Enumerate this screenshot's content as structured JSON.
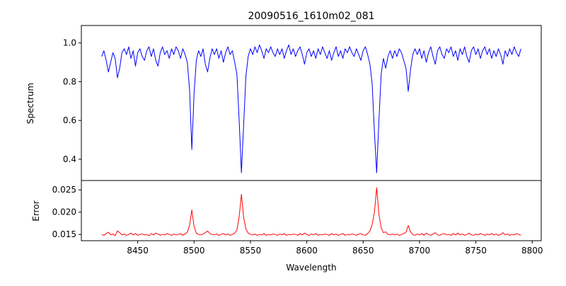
{
  "chart_data": {
    "type": "line",
    "title": "20090516_1610m02_081",
    "xlabel": "Wavelength",
    "xlim": [
      8400,
      8808
    ],
    "xticks": [
      8450,
      8500,
      8550,
      8600,
      8650,
      8700,
      8750,
      8800
    ],
    "grid": false,
    "legend": "none",
    "x": [
      8418,
      8420,
      8422,
      8424,
      8426,
      8428,
      8430,
      8432,
      8434,
      8436,
      8438,
      8440,
      8442,
      8444,
      8446,
      8448,
      8450,
      8452,
      8454,
      8456,
      8458,
      8460,
      8462,
      8464,
      8466,
      8468,
      8470,
      8472,
      8474,
      8476,
      8478,
      8480,
      8482,
      8484,
      8486,
      8488,
      8490,
      8492,
      8494,
      8496,
      8498,
      8500,
      8502,
      8504,
      8506,
      8508,
      8510,
      8512,
      8514,
      8516,
      8518,
      8520,
      8522,
      8524,
      8526,
      8528,
      8530,
      8532,
      8534,
      8536,
      8538,
      8540,
      8542,
      8544,
      8546,
      8548,
      8550,
      8552,
      8554,
      8556,
      8558,
      8560,
      8562,
      8564,
      8566,
      8568,
      8570,
      8572,
      8574,
      8576,
      8578,
      8580,
      8582,
      8584,
      8586,
      8588,
      8590,
      8592,
      8594,
      8596,
      8598,
      8600,
      8602,
      8604,
      8606,
      8608,
      8610,
      8612,
      8614,
      8616,
      8618,
      8620,
      8622,
      8624,
      8626,
      8628,
      8630,
      8632,
      8634,
      8636,
      8638,
      8640,
      8642,
      8644,
      8646,
      8648,
      8650,
      8652,
      8654,
      8656,
      8658,
      8660,
      8662,
      8664,
      8666,
      8668,
      8670,
      8672,
      8674,
      8676,
      8678,
      8680,
      8682,
      8684,
      8686,
      8688,
      8690,
      8692,
      8694,
      8696,
      8698,
      8700,
      8702,
      8704,
      8706,
      8708,
      8710,
      8712,
      8714,
      8716,
      8718,
      8720,
      8722,
      8724,
      8726,
      8728,
      8730,
      8732,
      8734,
      8736,
      8738,
      8740,
      8742,
      8744,
      8746,
      8748,
      8750,
      8752,
      8754,
      8756,
      8758,
      8760,
      8762,
      8764,
      8766,
      8768,
      8770,
      8772,
      8774,
      8776,
      8778,
      8780,
      8782,
      8784,
      8786,
      8788,
      8790
    ],
    "panels": [
      {
        "ylabel": "Spectrum",
        "color": "#0000ff",
        "ylim": [
          0.29,
          1.09
        ],
        "yticks": [
          0.4,
          0.6,
          0.8,
          1.0
        ],
        "tick_decimals": 1,
        "values": [
          0.93,
          0.96,
          0.91,
          0.85,
          0.9,
          0.95,
          0.92,
          0.82,
          0.87,
          0.95,
          0.97,
          0.94,
          0.98,
          0.92,
          0.96,
          0.88,
          0.95,
          0.97,
          0.93,
          0.91,
          0.96,
          0.98,
          0.93,
          0.97,
          0.91,
          0.88,
          0.95,
          0.98,
          0.94,
          0.96,
          0.92,
          0.97,
          0.94,
          0.98,
          0.96,
          0.92,
          0.97,
          0.94,
          0.9,
          0.76,
          0.45,
          0.74,
          0.91,
          0.96,
          0.93,
          0.97,
          0.89,
          0.85,
          0.92,
          0.97,
          0.94,
          0.97,
          0.92,
          0.96,
          0.9,
          0.95,
          0.98,
          0.94,
          0.96,
          0.9,
          0.84,
          0.6,
          0.33,
          0.58,
          0.83,
          0.93,
          0.97,
          0.94,
          0.98,
          0.95,
          0.99,
          0.96,
          0.92,
          0.97,
          0.95,
          0.98,
          0.95,
          0.93,
          0.97,
          0.94,
          0.97,
          0.92,
          0.96,
          0.99,
          0.94,
          0.97,
          0.93,
          0.96,
          0.98,
          0.94,
          0.89,
          0.95,
          0.97,
          0.93,
          0.96,
          0.92,
          0.97,
          0.94,
          0.98,
          0.95,
          0.92,
          0.96,
          0.91,
          0.95,
          0.98,
          0.93,
          0.96,
          0.92,
          0.97,
          0.95,
          0.98,
          0.95,
          0.93,
          0.97,
          0.94,
          0.91,
          0.96,
          0.98,
          0.94,
          0.89,
          0.79,
          0.54,
          0.33,
          0.6,
          0.84,
          0.92,
          0.87,
          0.93,
          0.96,
          0.92,
          0.96,
          0.93,
          0.97,
          0.95,
          0.91,
          0.87,
          0.75,
          0.86,
          0.94,
          0.97,
          0.94,
          0.97,
          0.92,
          0.96,
          0.9,
          0.95,
          0.98,
          0.93,
          0.89,
          0.96,
          0.98,
          0.94,
          0.92,
          0.97,
          0.95,
          0.98,
          0.93,
          0.96,
          0.91,
          0.97,
          0.94,
          0.98,
          0.93,
          0.9,
          0.96,
          0.98,
          0.94,
          0.97,
          0.92,
          0.96,
          0.98,
          0.94,
          0.97,
          0.92,
          0.96,
          0.93,
          0.97,
          0.94,
          0.89,
          0.96,
          0.93,
          0.97,
          0.94,
          0.98,
          0.95,
          0.93,
          0.97
        ]
      },
      {
        "ylabel": "Error",
        "color": "#ff0000",
        "ylim": [
          0.0136,
          0.0271
        ],
        "yticks": [
          0.015,
          0.02,
          0.025
        ],
        "tick_decimals": 3,
        "values": [
          0.015,
          0.0148,
          0.0152,
          0.0155,
          0.0149,
          0.0151,
          0.0147,
          0.0158,
          0.0154,
          0.0149,
          0.0151,
          0.0148,
          0.015,
          0.0153,
          0.0149,
          0.0152,
          0.0148,
          0.015,
          0.0151,
          0.0149,
          0.015,
          0.0147,
          0.0152,
          0.0149,
          0.0153,
          0.0151,
          0.0148,
          0.015,
          0.0149,
          0.0152,
          0.015,
          0.0148,
          0.0151,
          0.0149,
          0.015,
          0.0152,
          0.0148,
          0.0151,
          0.0155,
          0.017,
          0.0205,
          0.0168,
          0.0153,
          0.015,
          0.0149,
          0.0151,
          0.0154,
          0.0158,
          0.0152,
          0.015,
          0.0149,
          0.0151,
          0.0148,
          0.015,
          0.0152,
          0.0149,
          0.0151,
          0.0148,
          0.015,
          0.0153,
          0.016,
          0.019,
          0.024,
          0.0188,
          0.0162,
          0.0153,
          0.015,
          0.0149,
          0.0151,
          0.0148,
          0.015,
          0.0149,
          0.0152,
          0.0148,
          0.015,
          0.0149,
          0.0151,
          0.015,
          0.0148,
          0.0151,
          0.0149,
          0.0152,
          0.0148,
          0.015,
          0.0149,
          0.0151,
          0.015,
          0.0148,
          0.0152,
          0.0149,
          0.0153,
          0.015,
          0.0148,
          0.0151,
          0.0149,
          0.0152,
          0.0148,
          0.015,
          0.0149,
          0.0151,
          0.015,
          0.0148,
          0.0152,
          0.0149,
          0.0151,
          0.0148,
          0.015,
          0.0152,
          0.0148,
          0.015,
          0.0149,
          0.0151,
          0.015,
          0.0148,
          0.0151,
          0.0152,
          0.0149,
          0.0148,
          0.0152,
          0.0158,
          0.0172,
          0.02,
          0.0255,
          0.0195,
          0.0165,
          0.0154,
          0.0156,
          0.015,
          0.0149,
          0.0151,
          0.0149,
          0.0151,
          0.0148,
          0.015,
          0.0152,
          0.0155,
          0.017,
          0.0156,
          0.015,
          0.0148,
          0.0151,
          0.0149,
          0.0152,
          0.0148,
          0.0153,
          0.015,
          0.0148,
          0.0151,
          0.0154,
          0.0149,
          0.0148,
          0.0151,
          0.0152,
          0.0149,
          0.015,
          0.0148,
          0.0152,
          0.0149,
          0.0153,
          0.0149,
          0.0151,
          0.0148,
          0.015,
          0.0153,
          0.0149,
          0.0148,
          0.0151,
          0.0149,
          0.0152,
          0.015,
          0.0148,
          0.0151,
          0.0149,
          0.0152,
          0.0149,
          0.0151,
          0.0148,
          0.015,
          0.0154,
          0.0149,
          0.0151,
          0.0148,
          0.015,
          0.0149,
          0.0152,
          0.015,
          0.0148
        ]
      }
    ]
  }
}
